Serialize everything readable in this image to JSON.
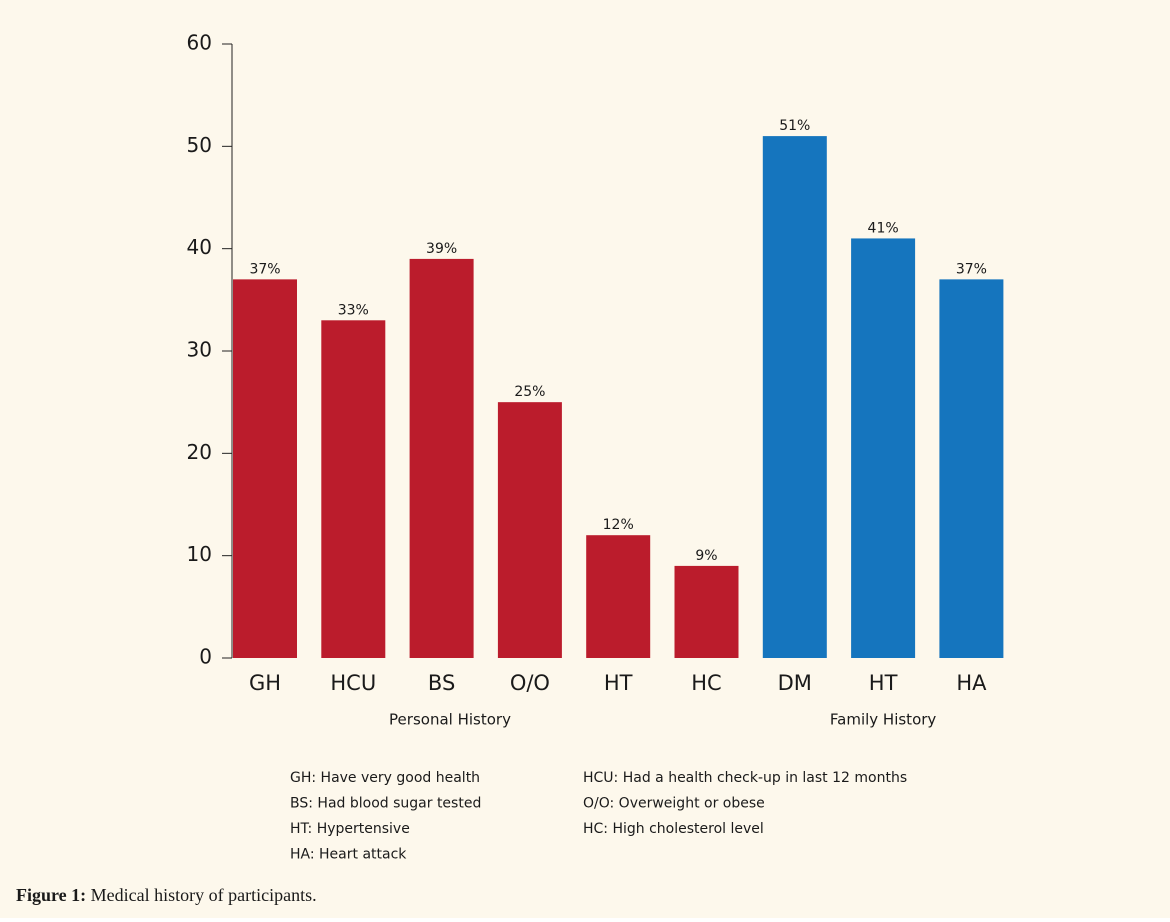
{
  "chart_data": {
    "type": "bar",
    "series": [
      {
        "name": "Personal History",
        "color": "#bb1c2c",
        "categories": [
          "GH",
          "HCU",
          "BS",
          "O/O",
          "HT",
          "HC"
        ],
        "values": [
          37,
          33,
          39,
          25,
          12,
          9
        ],
        "value_labels": [
          "37%",
          "33%",
          "39%",
          "25%",
          "12%",
          "9%"
        ]
      },
      {
        "name": "Family History",
        "color": "#1575be",
        "categories": [
          "DM",
          "HT",
          "HA"
        ],
        "values": [
          51,
          41,
          37
        ],
        "value_labels": [
          "51%",
          "41%",
          "37%"
        ]
      }
    ],
    "ylim": [
      0,
      60
    ],
    "yticks": [
      0,
      10,
      20,
      30,
      40,
      50,
      60
    ],
    "notes": [
      "GH: Have very good health",
      "HCU: Had a health check-up in last 12 months",
      "BS: Had blood sugar tested",
      "O/O: Overweight or obese",
      "HT: Hypertensive",
      "HC: High cholesterol level",
      "HA: Heart attack"
    ],
    "caption": {
      "label": "Figure 1:",
      "text": "Medical history of participants."
    }
  }
}
